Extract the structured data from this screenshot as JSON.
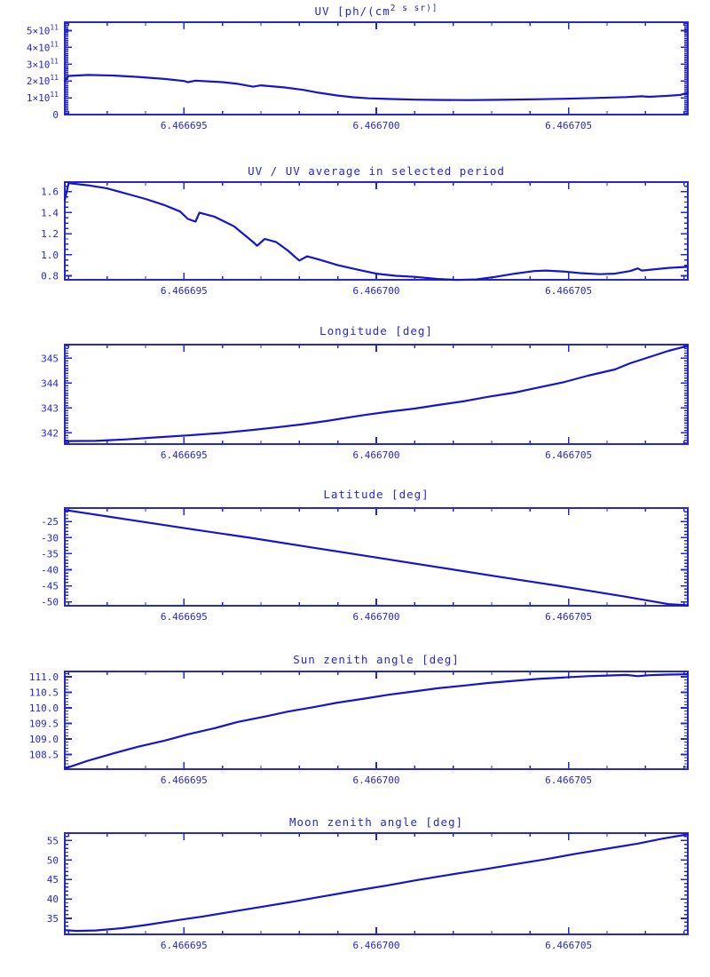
{
  "window": {
    "description": "Stack of six IDL-style time-series plots, blue on white"
  },
  "colors": {
    "axis": "#2828c8",
    "line": "#1414d2",
    "background": "#ffffff"
  },
  "x_axis": {
    "lim": [
      6.4666919,
      6.4667081
    ],
    "major_ticks": [
      6.466695,
      6.4667,
      6.466705
    ],
    "major_labels": [
      "6.466695",
      "6.466700",
      "6.466705"
    ],
    "minor_step": 1e-06
  },
  "chart_data": [
    {
      "type": "line",
      "name": "uv",
      "title": "UV [ph/(cm^2 s sr)]",
      "ylabel": "",
      "y_unit": "1e11 ph/(cm^2 s sr)",
      "ylim": [
        0,
        5.5
      ],
      "y_major": [
        0,
        1,
        2,
        3,
        4,
        5
      ],
      "y_major_labels": [
        "0",
        "1×10^11",
        "2×10^11",
        "3×10^11",
        "4×10^11",
        "5×10^11"
      ],
      "y_minor_step": 0.1,
      "points": [
        [
          6.4666919,
          2.02
        ],
        [
          6.466692,
          2.3
        ],
        [
          6.4666925,
          2.36
        ],
        [
          6.4666932,
          2.32
        ],
        [
          6.4666938,
          2.24
        ],
        [
          6.4666945,
          2.12
        ],
        [
          6.466695,
          2.0
        ],
        [
          6.4666951,
          1.93
        ],
        [
          6.4666953,
          2.02
        ],
        [
          6.466696,
          1.93
        ],
        [
          6.4666964,
          1.83
        ],
        [
          6.4666968,
          1.66
        ],
        [
          6.466697,
          1.74
        ],
        [
          6.4666976,
          1.62
        ],
        [
          6.4666981,
          1.47
        ],
        [
          6.4666985,
          1.3
        ],
        [
          6.466699,
          1.13
        ],
        [
          6.4666994,
          1.03
        ],
        [
          6.4666998,
          0.97
        ],
        [
          6.4667003,
          0.93
        ],
        [
          6.466701,
          0.89
        ],
        [
          6.4667016,
          0.87
        ],
        [
          6.4667024,
          0.86
        ],
        [
          6.4667032,
          0.88
        ],
        [
          6.4667041,
          0.91
        ],
        [
          6.4667049,
          0.94
        ],
        [
          6.4667057,
          0.99
        ],
        [
          6.4667065,
          1.04
        ],
        [
          6.4667069,
          1.09
        ],
        [
          6.4667071,
          1.06
        ],
        [
          6.4667076,
          1.12
        ],
        [
          6.4667079,
          1.17
        ],
        [
          6.4667081,
          1.3
        ]
      ]
    },
    {
      "type": "line",
      "name": "uv-ratio",
      "title": "UV / UV average in selected period",
      "ylabel": "",
      "ylim": [
        0.762,
        1.69
      ],
      "y_major": [
        0.8,
        1.0,
        1.2,
        1.4,
        1.6
      ],
      "y_major_labels": [
        "0.8",
        "1.0",
        "1.2",
        "1.4",
        "1.6"
      ],
      "y_minor_step": 0.05,
      "points": [
        [
          6.4666919,
          1.52
        ],
        [
          6.466692,
          1.68
        ],
        [
          6.4666925,
          1.66
        ],
        [
          6.466693,
          1.63
        ],
        [
          6.4666935,
          1.58
        ],
        [
          6.466694,
          1.53
        ],
        [
          6.4666945,
          1.47
        ],
        [
          6.4666949,
          1.41
        ],
        [
          6.4666951,
          1.34
        ],
        [
          6.4666953,
          1.315
        ],
        [
          6.4666954,
          1.4
        ],
        [
          6.4666958,
          1.36
        ],
        [
          6.4666963,
          1.27
        ],
        [
          6.4666966,
          1.18
        ],
        [
          6.4666968,
          1.12
        ],
        [
          6.4666969,
          1.085
        ],
        [
          6.4666971,
          1.15
        ],
        [
          6.4666974,
          1.12
        ],
        [
          6.4666977,
          1.04
        ],
        [
          6.4666979,
          0.975
        ],
        [
          6.466698,
          0.945
        ],
        [
          6.4666982,
          0.985
        ],
        [
          6.4666985,
          0.955
        ],
        [
          6.466699,
          0.9
        ],
        [
          6.4666995,
          0.86
        ],
        [
          6.4667,
          0.82
        ],
        [
          6.4667005,
          0.8
        ],
        [
          6.466701,
          0.79
        ],
        [
          6.4667016,
          0.77
        ],
        [
          6.4667021,
          0.76
        ],
        [
          6.4667026,
          0.765
        ],
        [
          6.4667031,
          0.79
        ],
        [
          6.4667036,
          0.82
        ],
        [
          6.4667041,
          0.845
        ],
        [
          6.4667044,
          0.85
        ],
        [
          6.4667049,
          0.84
        ],
        [
          6.4667053,
          0.825
        ],
        [
          6.4667058,
          0.815
        ],
        [
          6.4667062,
          0.82
        ],
        [
          6.4667066,
          0.845
        ],
        [
          6.4667068,
          0.87
        ],
        [
          6.4667069,
          0.85
        ],
        [
          6.4667072,
          0.86
        ],
        [
          6.4667076,
          0.875
        ],
        [
          6.4667081,
          0.885
        ]
      ]
    },
    {
      "type": "line",
      "name": "longitude",
      "title": "Longitude [deg]",
      "ylabel": "deg",
      "ylim": [
        341.55,
        345.55
      ],
      "y_major": [
        342,
        343,
        344,
        345
      ],
      "y_major_labels": [
        "342",
        "343",
        "344",
        "345"
      ],
      "y_minor_step": 0.1,
      "points": [
        [
          6.4666919,
          341.67
        ],
        [
          6.4666927,
          341.68
        ],
        [
          6.4666935,
          341.74
        ],
        [
          6.4666943,
          341.82
        ],
        [
          6.4666951,
          341.9
        ],
        [
          6.466696,
          342.0
        ],
        [
          6.4666968,
          342.12
        ],
        [
          6.4666974,
          342.22
        ],
        [
          6.4666981,
          342.35
        ],
        [
          6.4666987,
          342.48
        ],
        [
          6.4666992,
          342.6
        ],
        [
          6.4666997,
          342.72
        ],
        [
          6.4667003,
          342.85
        ],
        [
          6.466701,
          342.98
        ],
        [
          6.4667016,
          343.12
        ],
        [
          6.4667023,
          343.28
        ],
        [
          6.4667029,
          343.45
        ],
        [
          6.4667036,
          343.62
        ],
        [
          6.4667042,
          343.82
        ],
        [
          6.4667049,
          344.05
        ],
        [
          6.4667055,
          344.3
        ],
        [
          6.4667062,
          344.55
        ],
        [
          6.4667066,
          344.8
        ],
        [
          6.4667071,
          345.05
        ],
        [
          6.4667076,
          345.3
        ],
        [
          6.4667081,
          345.5
        ]
      ]
    },
    {
      "type": "line",
      "name": "latitude",
      "title": "Latitude [deg]",
      "ylabel": "deg",
      "ylim": [
        -51.2,
        -20.8
      ],
      "y_major": [
        -50,
        -45,
        -40,
        -35,
        -30,
        -25
      ],
      "y_major_labels": [
        "-50",
        "-45",
        "-40",
        "-35",
        "-30",
        "-25"
      ],
      "y_minor_step": 1,
      "points": [
        [
          6.4666919,
          -21.4
        ],
        [
          6.4666935,
          -24.3
        ],
        [
          6.4666951,
          -27.2
        ],
        [
          6.4666968,
          -30.2
        ],
        [
          6.4666984,
          -33.2
        ],
        [
          6.4667,
          -36.2
        ],
        [
          6.4667016,
          -39.2
        ],
        [
          6.4667032,
          -42.2
        ],
        [
          6.4667049,
          -45.3
        ],
        [
          6.4667065,
          -48.4
        ],
        [
          6.4667076,
          -50.7
        ],
        [
          6.4667081,
          -51.05
        ]
      ]
    },
    {
      "type": "line",
      "name": "sun-zenith",
      "title": "Sun zenith angle [deg]",
      "ylabel": "deg",
      "ylim": [
        108.03,
        111.17
      ],
      "y_major": [
        108.5,
        109.0,
        109.5,
        110.0,
        110.5,
        111.0
      ],
      "y_major_labels": [
        "108.5",
        "109.0",
        "109.5",
        "110.0",
        "110.5",
        "111.0"
      ],
      "y_minor_step": 0.1,
      "points": [
        [
          6.4666919,
          108.05
        ],
        [
          6.4666925,
          108.3
        ],
        [
          6.4666932,
          108.55
        ],
        [
          6.4666938,
          108.75
        ],
        [
          6.4666945,
          108.95
        ],
        [
          6.4666951,
          109.15
        ],
        [
          6.4666958,
          109.35
        ],
        [
          6.4666964,
          109.55
        ],
        [
          6.4666971,
          109.72
        ],
        [
          6.4666977,
          109.88
        ],
        [
          6.4666984,
          110.03
        ],
        [
          6.466699,
          110.17
        ],
        [
          6.4666997,
          110.3
        ],
        [
          6.4667003,
          110.42
        ],
        [
          6.466701,
          110.53
        ],
        [
          6.4667016,
          110.63
        ],
        [
          6.4667023,
          110.72
        ],
        [
          6.4667029,
          110.8
        ],
        [
          6.4667036,
          110.87
        ],
        [
          6.4667042,
          110.93
        ],
        [
          6.4667049,
          110.98
        ],
        [
          6.4667055,
          111.02
        ],
        [
          6.466706,
          111.04
        ],
        [
          6.4667065,
          111.06
        ],
        [
          6.4667068,
          111.02
        ],
        [
          6.4667071,
          111.05
        ],
        [
          6.4667076,
          111.07
        ],
        [
          6.4667081,
          111.08
        ]
      ]
    },
    {
      "type": "line",
      "name": "moon-zenith",
      "title": "Moon zenith angle [deg]",
      "ylabel": "deg",
      "ylim": [
        30.9,
        56.9
      ],
      "y_major": [
        35,
        40,
        45,
        50,
        55
      ],
      "y_major_labels": [
        "35",
        "40",
        "45",
        "50",
        "55"
      ],
      "y_minor_step": 1,
      "points": [
        [
          6.4666919,
          32.0
        ],
        [
          6.4666922,
          31.8
        ],
        [
          6.4666927,
          31.9
        ],
        [
          6.4666934,
          32.5
        ],
        [
          6.466694,
          33.3
        ],
        [
          6.4666948,
          34.5
        ],
        [
          6.4666955,
          35.5
        ],
        [
          6.4666963,
          36.8
        ],
        [
          6.4666971,
          38.1
        ],
        [
          6.4666979,
          39.4
        ],
        [
          6.4666987,
          40.8
        ],
        [
          6.4666995,
          42.2
        ],
        [
          6.4667003,
          43.5
        ],
        [
          6.4667011,
          44.9
        ],
        [
          6.4667019,
          46.2
        ],
        [
          6.4667028,
          47.6
        ],
        [
          6.4667036,
          48.9
        ],
        [
          6.4667044,
          50.2
        ],
        [
          6.4667052,
          51.6
        ],
        [
          6.466706,
          52.9
        ],
        [
          6.4667068,
          54.2
        ],
        [
          6.4667074,
          55.4
        ],
        [
          6.4667081,
          56.6
        ]
      ]
    }
  ]
}
